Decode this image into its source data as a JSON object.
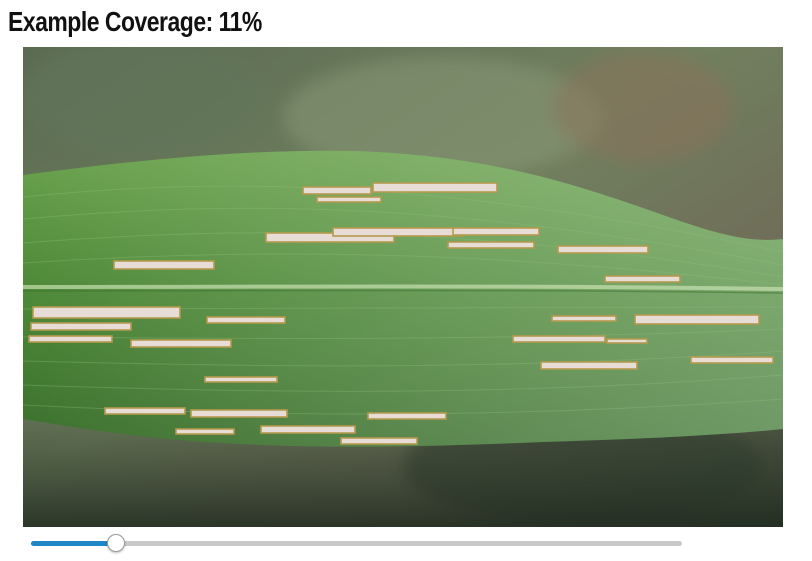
{
  "header": {
    "title": "Example Coverage: 11%"
  },
  "photo": {
    "subject": "leaf-with-damage-patches",
    "damage_fill_color": "#e8ddd6",
    "damage_edge_color": "#b59a4e",
    "leaf_color": "#4f8a3a"
  },
  "slider": {
    "value": 0.13,
    "fill_color": "#1f86c8",
    "track_color": "#c9c9c9"
  }
}
